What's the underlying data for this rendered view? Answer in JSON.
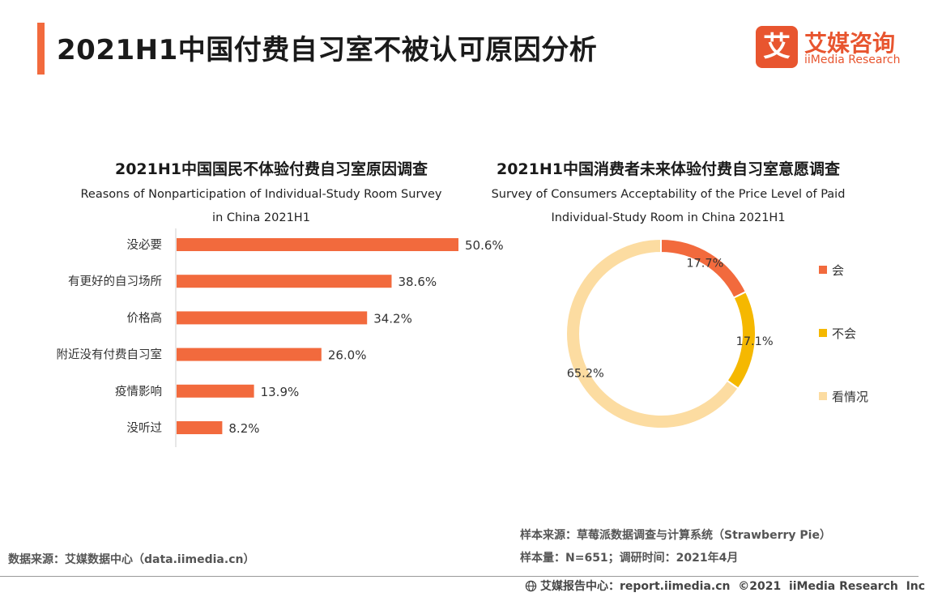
{
  "page": {
    "title": "2021H1中国付费自习室不被认可原因分析",
    "accent": "#f26a3d"
  },
  "logo": {
    "glyph": "艾",
    "cn": "艾媒咨询",
    "en": "iiMedia Research",
    "color": "#e8552f"
  },
  "chart_data": [
    {
      "type": "bar",
      "orientation": "horizontal",
      "title": "2021H1中国国民不体验付费自习室原因调查",
      "subtitle_lines": [
        "Reasons of Nonparticipation of Individual-Study Room Survey",
        "in China 2021H1"
      ],
      "categories": [
        "没必要",
        "有更好的自习场所",
        "价格高",
        "附近没有付费自习室",
        "疫情影响",
        "没听过"
      ],
      "values": [
        50.6,
        38.6,
        34.2,
        26.0,
        13.9,
        8.2
      ],
      "labels": [
        "50.6%",
        "38.6%",
        "34.2%",
        "26.0%",
        "13.9%",
        "8.2%"
      ],
      "unit": "%",
      "color": "#f26a3d",
      "xlim": [
        0,
        50.6
      ]
    },
    {
      "type": "pie",
      "style": "donut",
      "title": "2021H1中国消费者未来体验付费自习室意愿调查",
      "subtitle_lines": [
        "Survey of Consumers Acceptability of the Price Level of Paid",
        "Individual-Study Room in China 2021H1"
      ],
      "slices": [
        {
          "label": "会",
          "value": 17.7,
          "text": "17.7%",
          "color": "#f26a3d"
        },
        {
          "label": "不会",
          "value": 17.1,
          "text": "17.1%",
          "color": "#f5b800"
        },
        {
          "label": "看情况",
          "value": 65.2,
          "text": "65.2%",
          "color": "#fcdca1"
        }
      ],
      "legend_position": "right"
    }
  ],
  "sources": {
    "left": "数据来源：艾媒数据中心（data.iimedia.cn）",
    "right_lines": [
      "样本来源：草莓派数据调查与计算系统（Strawberry Pie）",
      "样本量：N=651；调研时间：2021年4月"
    ]
  },
  "footer": {
    "text": "艾媒报告中心：report.iimedia.cn  ©2021  iiMedia Research  Inc",
    "icon": "globe-icon"
  }
}
